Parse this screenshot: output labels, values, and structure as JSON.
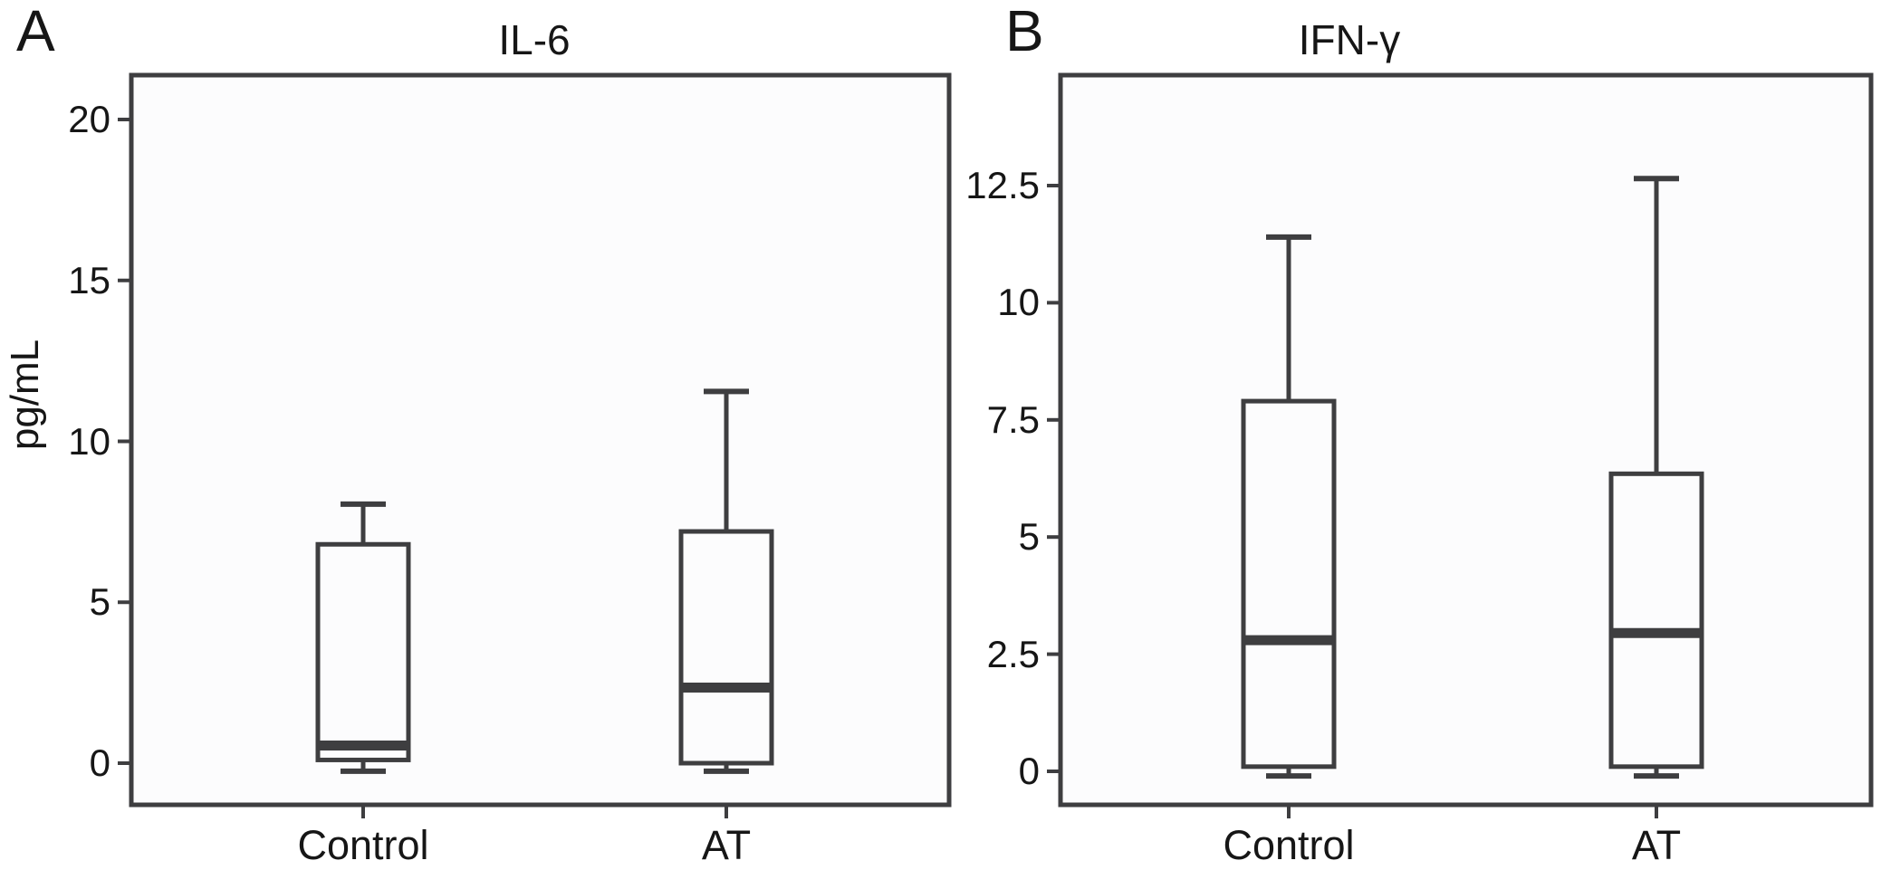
{
  "figure": {
    "panel_a_letter": "A",
    "panel_b_letter": "B",
    "y_axis_label": "pg/mL"
  },
  "colors": {
    "line": "#3e3e40",
    "text": "#161616",
    "panel_bg": "#fcfcfd",
    "page_bg": "#ffffff"
  },
  "chart_data": [
    {
      "type": "box",
      "panel": "A",
      "title": "IL-6",
      "ylabel": "pg/mL",
      "categories": [
        "Control",
        "AT"
      ],
      "y_tick_labels": [
        "0",
        "5",
        "10",
        "15",
        "20"
      ],
      "ylim": [
        -1.3,
        21.4
      ],
      "grid": false,
      "legend": "none",
      "series": [
        {
          "name": "Control",
          "whisker_low": -0.25,
          "q1": 0.1,
          "median": 0.55,
          "q3": 6.8,
          "whisker_high": 8.05
        },
        {
          "name": "AT",
          "whisker_low": -0.25,
          "q1": 0.0,
          "median": 2.35,
          "q3": 7.2,
          "whisker_high": 11.55
        }
      ]
    },
    {
      "type": "box",
      "panel": "B",
      "title": "IFN-γ",
      "ylabel": "pg/mL",
      "categories": [
        "Control",
        "AT"
      ],
      "y_tick_labels": [
        "0",
        "2.5",
        "5",
        "7.5",
        "10",
        "12.5"
      ],
      "ylim": [
        -0.8,
        14.9
      ],
      "grid": false,
      "legend": "none",
      "series": [
        {
          "name": "Control",
          "whisker_low": -0.1,
          "q1": 0.1,
          "median": 2.8,
          "q3": 7.9,
          "whisker_high": 11.4
        },
        {
          "name": "AT",
          "whisker_low": -0.1,
          "q1": 0.1,
          "median": 2.95,
          "q3": 6.35,
          "whisker_high": 12.65
        }
      ]
    }
  ]
}
